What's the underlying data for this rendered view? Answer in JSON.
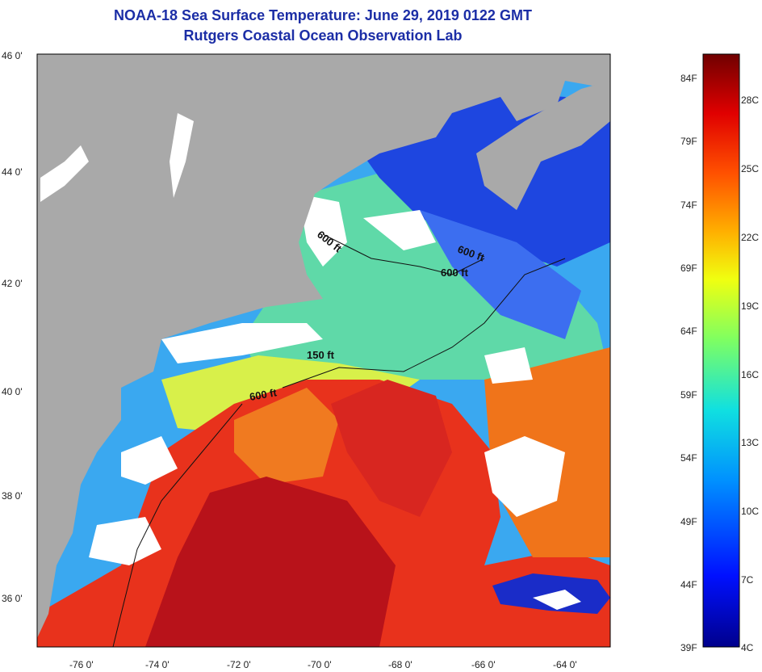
{
  "title": {
    "line1": "NOAA-18 Sea Surface Temperature:  June 29, 2019 0122 GMT",
    "line2": "Rutgers Coastal Ocean Observation Lab"
  },
  "map": {
    "lat_ticks": [
      "46 0'",
      "44 0'",
      "42 0'",
      "40 0'",
      "38 0'",
      "36 0'"
    ],
    "lon_ticks": [
      "-76 0'",
      "-74 0'",
      "-72 0'",
      "-70 0'",
      "-68 0'",
      "-66 0'",
      "-64 0'"
    ],
    "contour_labels": [
      "600 ft",
      "600 ft",
      "600 ft",
      "150 ft",
      "600 ft"
    ],
    "colors": {
      "land": "#a9a9a9",
      "cloud": "#ffffff",
      "warm": "#e8321c",
      "hot": "#b8121a",
      "cold": "#1e46e0"
    }
  },
  "colorbar": {
    "f_labels": [
      "84F",
      "79F",
      "74F",
      "69F",
      "64F",
      "59F",
      "54F",
      "49F",
      "44F",
      "39F"
    ],
    "c_labels": [
      "28C",
      "25C",
      "22C",
      "19C",
      "16C",
      "13C",
      "10C",
      "7C",
      "4C"
    ]
  }
}
